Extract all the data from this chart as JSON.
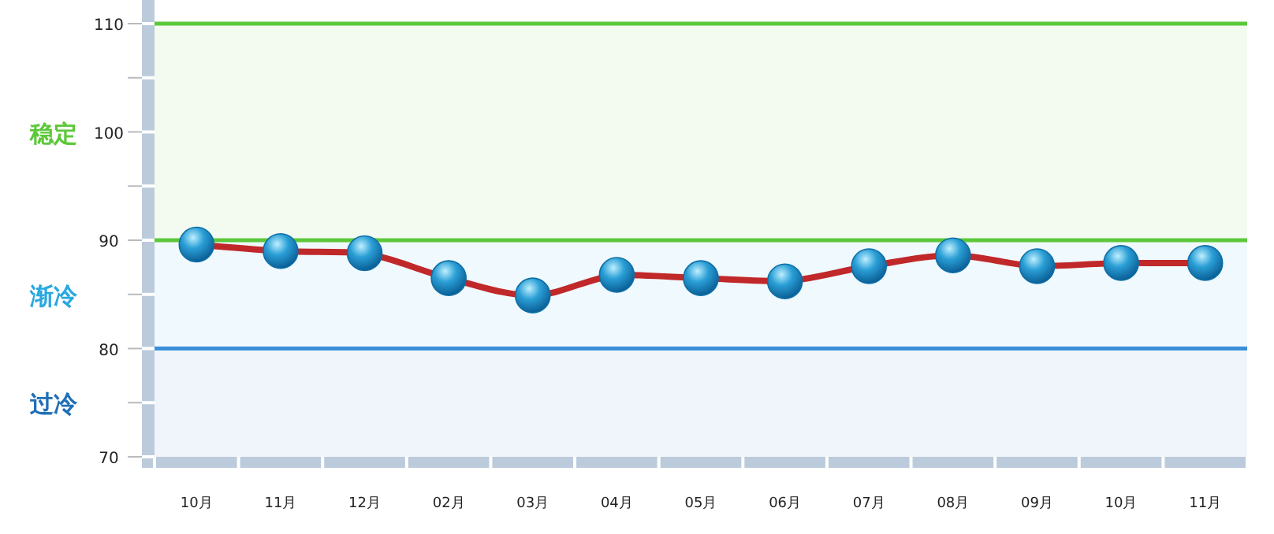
{
  "chart_data": {
    "type": "line",
    "categories": [
      "10月",
      "11月",
      "12月",
      "02月",
      "03月",
      "04月",
      "05月",
      "06月",
      "07月",
      "08月",
      "09月",
      "10月",
      "11月"
    ],
    "series": [
      {
        "color": "#c0282a",
        "values": [
          89.6,
          89.0,
          88.8,
          86.5,
          84.9,
          86.8,
          86.5,
          86.2,
          87.6,
          88.6,
          87.6,
          87.9,
          87.9
        ]
      }
    ],
    "ylim": [
      70,
      110
    ],
    "yticks": [
      70,
      {
        "value": 75,
        "label": null
      },
      80,
      {
        "value": 85,
        "label": null
      },
      90,
      {
        "value": 95,
        "label": null
      },
      100,
      {
        "value": 105,
        "label": null
      },
      110
    ],
    "ref_lines": [
      {
        "axis": "y",
        "value": 110,
        "color": "#5cc83a"
      },
      {
        "axis": "y",
        "value": 90,
        "color": "#5cc83a"
      },
      {
        "axis": "y",
        "value": 80,
        "color": "#3a8fd8"
      }
    ],
    "bands": [
      {
        "axis": "y",
        "from": 90,
        "to": 110,
        "label": "稳定",
        "color": "#5cc83a"
      },
      {
        "axis": "y",
        "from": 80,
        "to": 90,
        "label": "渐冷",
        "color": "#29a8e0"
      },
      {
        "axis": "y",
        "from": 70,
        "to": 80,
        "label": "过冷",
        "color": "#1f6fb8"
      }
    ],
    "marker": "circle",
    "line_style": "solid",
    "grid": false
  }
}
